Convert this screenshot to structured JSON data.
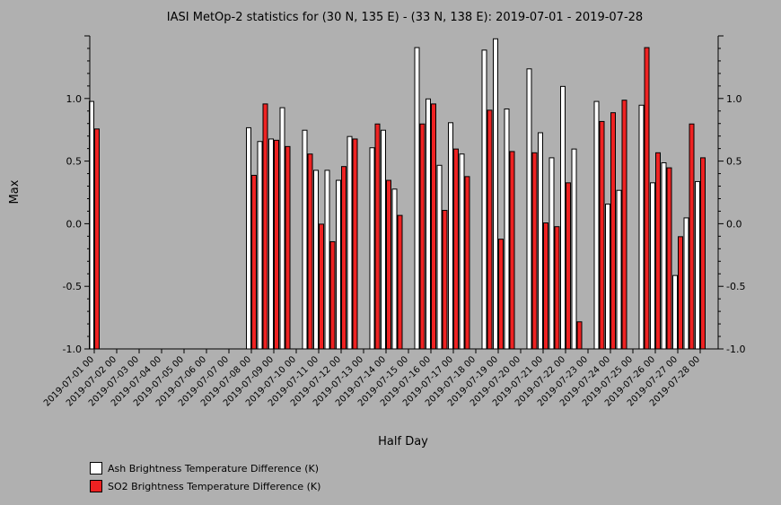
{
  "chart_data": {
    "type": "bar",
    "title": "IASI MetOp-2 statistics for (30 N, 135 E) - (33 N, 138 E): 2019-07-01 - 2019-07-28",
    "xlabel": "Half Day",
    "ylabel": "Max",
    "ylim": [
      -1.0,
      1.5
    ],
    "yticks": [
      "1.0",
      "0.5",
      "0.0",
      "-0.5",
      "-1.0"
    ],
    "ytick_values": [
      1.0,
      0.5,
      0.0,
      -0.5,
      -1.0
    ],
    "categories": [
      "2019-07-01 00",
      "2019-07-01 12",
      "2019-07-02 00",
      "2019-07-02 12",
      "2019-07-03 00",
      "2019-07-03 12",
      "2019-07-04 00",
      "2019-07-04 12",
      "2019-07-05 00",
      "2019-07-05 12",
      "2019-07-06 00",
      "2019-07-06 12",
      "2019-07-07 00",
      "2019-07-07 12",
      "2019-07-08 00",
      "2019-07-08 12",
      "2019-07-09 00",
      "2019-07-09 12",
      "2019-07-10 00",
      "2019-07-10 12",
      "2019-07-11 00",
      "2019-07-11 12",
      "2019-07-12 00",
      "2019-07-12 12",
      "2019-07-13 00",
      "2019-07-13 12",
      "2019-07-14 00",
      "2019-07-14 12",
      "2019-07-15 00",
      "2019-07-15 12",
      "2019-07-16 00",
      "2019-07-16 12",
      "2019-07-17 00",
      "2019-07-17 12",
      "2019-07-18 00",
      "2019-07-18 12",
      "2019-07-19 00",
      "2019-07-19 12",
      "2019-07-20 00",
      "2019-07-20 12",
      "2019-07-21 00",
      "2019-07-21 12",
      "2019-07-22 00",
      "2019-07-22 12",
      "2019-07-23 00",
      "2019-07-23 12",
      "2019-07-24 00",
      "2019-07-24 12",
      "2019-07-25 00",
      "2019-07-25 12",
      "2019-07-26 00",
      "2019-07-26 12",
      "2019-07-27 00",
      "2019-07-27 12",
      "2019-07-28 00",
      "2019-07-28 12"
    ],
    "tick_labels": [
      "2019-07-01 00",
      "2019-07-02 00",
      "2019-07-03 00",
      "2019-07-04 00",
      "2019-07-05 00",
      "2019-07-06 00",
      "2019-07-07 00",
      "2019-07-08 00",
      "2019-07-09 00",
      "2019-07-10 00",
      "2019-07-11 00",
      "2019-07-12 00",
      "2019-07-13 00",
      "2019-07-14 00",
      "2019-07-15 00",
      "2019-07-16 00",
      "2019-07-17 00",
      "2019-07-18 00",
      "2019-07-19 00",
      "2019-07-20 00",
      "2019-07-21 00",
      "2019-07-22 00",
      "2019-07-23 00",
      "2019-07-24 00",
      "2019-07-25 00",
      "2019-07-26 00",
      "2019-07-27 00",
      "2019-07-28 00"
    ],
    "series": [
      {
        "name": "Ash Brightness Temperature Difference (K)",
        "color": "#ffffff",
        "values": [
          0.98,
          null,
          null,
          null,
          null,
          null,
          null,
          null,
          null,
          null,
          null,
          null,
          null,
          null,
          0.77,
          0.66,
          0.68,
          0.93,
          null,
          0.75,
          0.43,
          0.43,
          0.35,
          0.7,
          null,
          0.61,
          0.75,
          0.28,
          null,
          1.41,
          1.0,
          0.47,
          0.81,
          0.56,
          null,
          1.39,
          1.48,
          0.92,
          null,
          1.24,
          0.73,
          0.53,
          1.1,
          0.6,
          null,
          0.98,
          0.16,
          0.27,
          null,
          0.95,
          0.33,
          0.49,
          -0.41,
          0.05,
          0.34,
          null
        ]
      },
      {
        "name": "SO2 Brightness Temperature Difference (K)",
        "color": "#ee2222",
        "values": [
          0.76,
          null,
          null,
          null,
          null,
          null,
          null,
          null,
          null,
          null,
          null,
          null,
          null,
          null,
          0.39,
          0.96,
          0.67,
          0.62,
          null,
          0.56,
          0.0,
          -0.14,
          0.46,
          0.68,
          null,
          0.8,
          0.35,
          0.07,
          null,
          0.8,
          0.96,
          0.11,
          0.6,
          0.38,
          null,
          0.91,
          -0.12,
          0.58,
          null,
          0.57,
          0.01,
          -0.02,
          0.33,
          -0.78,
          null,
          0.82,
          0.89,
          0.99,
          null,
          1.41,
          0.57,
          0.45,
          -0.1,
          0.8,
          0.53,
          null
        ]
      }
    ],
    "legend": "bottom-left"
  }
}
